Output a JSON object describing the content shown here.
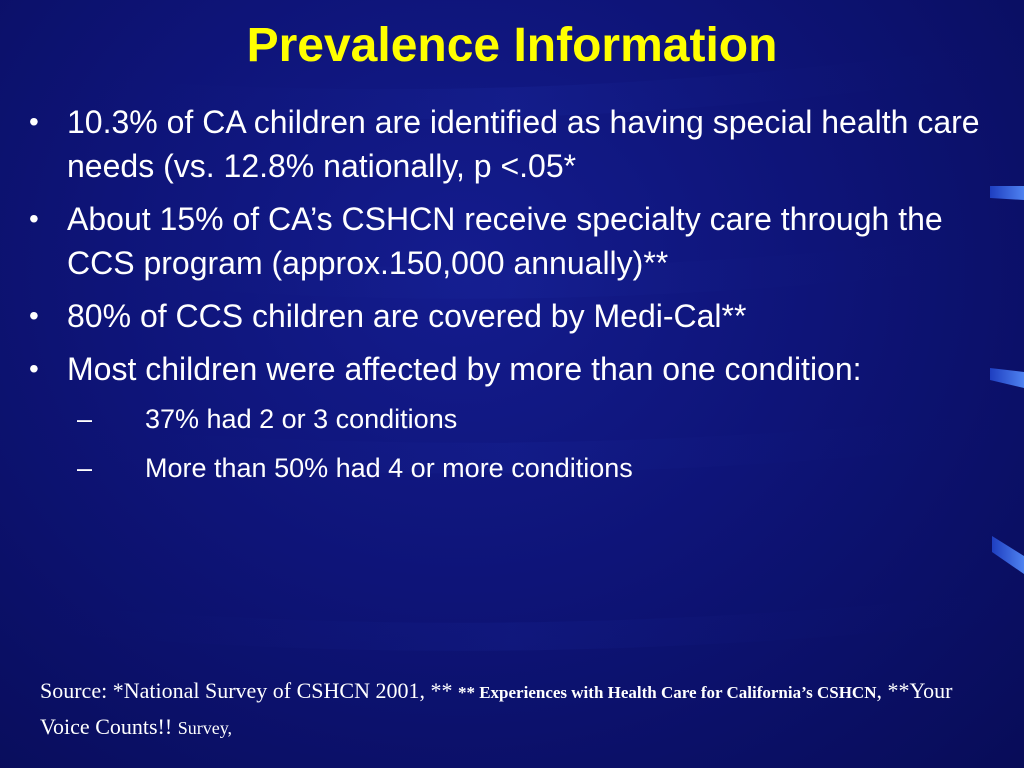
{
  "slide": {
    "title": "Prevalence Information",
    "bullets": [
      {
        "marker": "•",
        "text": "10.3% of CA children are identified as having special health care needs (vs. 12.8% nationally, p <.05*"
      },
      {
        "marker": "•",
        "text": "About 15% of CA’s CSHCN receive specialty care through the CCS program (approx.150,000 annually)**"
      },
      {
        "marker": "•",
        "text": "80% of CCS children are covered by Medi-Cal**"
      },
      {
        "marker": "•",
        "text": "Most children were affected by more than one condition:",
        "sub_items": [
          {
            "marker": "–",
            "text": "37% had 2 or 3 conditions"
          },
          {
            "marker": "–",
            "text": "More than 50% had 4 or more conditions"
          }
        ]
      }
    ],
    "source": {
      "part1": "Source: *National Survey of CSHCN 2001, ** ",
      "part2": "** Experiences with Health Care for California’s CSHCN",
      "part3": ", **Your Voice Counts!! ",
      "part4": "Survey,"
    }
  },
  "colors": {
    "background": "#0e1478",
    "title": "#ffff00",
    "text": "#ffffff",
    "accent_stripes": "#3a6ae0"
  }
}
